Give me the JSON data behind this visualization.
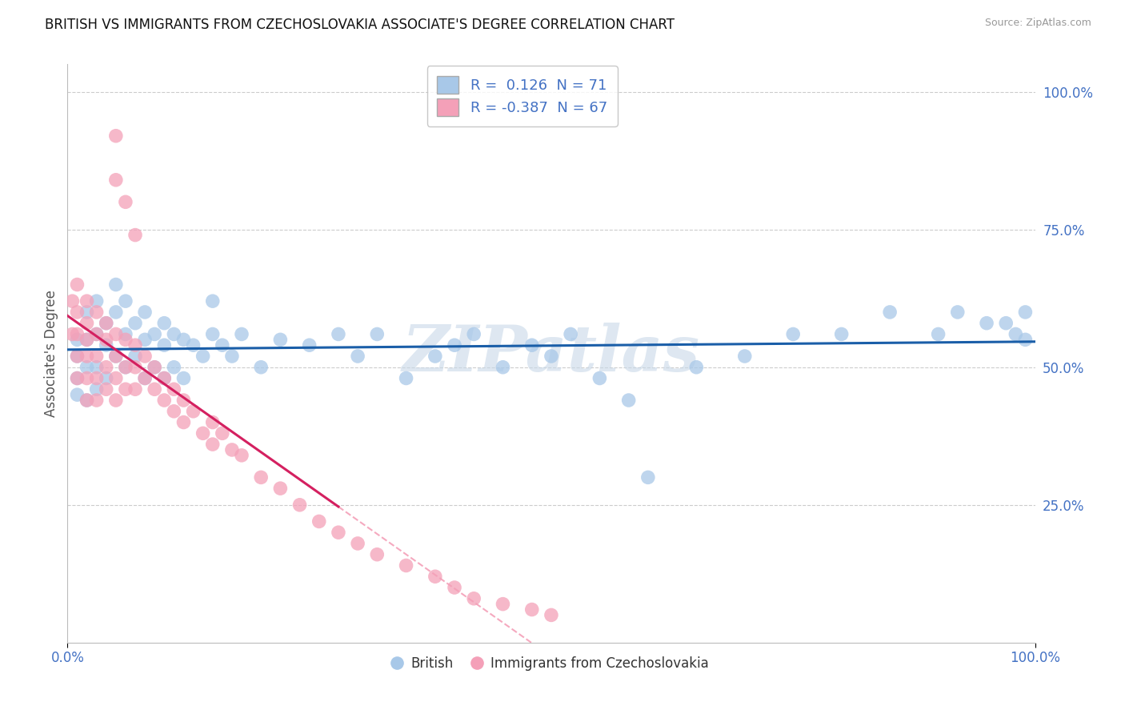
{
  "title": "BRITISH VS IMMIGRANTS FROM CZECHOSLOVAKIA ASSOCIATE'S DEGREE CORRELATION CHART",
  "source": "Source: ZipAtlas.com",
  "ylabel": "Associate's Degree",
  "ytick_labels": [
    "25.0%",
    "50.0%",
    "75.0%",
    "100.0%"
  ],
  "ytick_values": [
    0.25,
    0.5,
    0.75,
    1.0
  ],
  "blue_r": 0.126,
  "blue_n": 71,
  "pink_r": -0.387,
  "pink_n": 67,
  "blue_color": "#a8c8e8",
  "pink_color": "#f4a0b8",
  "blue_line_color": "#1a5ea8",
  "pink_line_color": "#d42060",
  "watermark_text": "ZIPatlas",
  "watermark_color": "#c8d8e8",
  "background_color": "#ffffff",
  "grid_color": "#cccccc",
  "title_color": "#111111",
  "axis_color": "#4472c4",
  "label_color": "#555555",
  "blue_x": [
    0.01,
    0.01,
    0.01,
    0.01,
    0.02,
    0.02,
    0.02,
    0.02,
    0.03,
    0.03,
    0.03,
    0.03,
    0.04,
    0.04,
    0.04,
    0.05,
    0.05,
    0.05,
    0.06,
    0.06,
    0.06,
    0.07,
    0.07,
    0.08,
    0.08,
    0.08,
    0.09,
    0.09,
    0.1,
    0.1,
    0.1,
    0.11,
    0.11,
    0.12,
    0.12,
    0.13,
    0.14,
    0.15,
    0.15,
    0.16,
    0.17,
    0.18,
    0.2,
    0.22,
    0.25,
    0.28,
    0.3,
    0.32,
    0.35,
    0.38,
    0.4,
    0.42,
    0.45,
    0.48,
    0.5,
    0.52,
    0.55,
    0.58,
    0.6,
    0.65,
    0.7,
    0.75,
    0.8,
    0.85,
    0.9,
    0.92,
    0.95,
    0.97,
    0.98,
    0.99,
    0.99
  ],
  "blue_y": [
    0.55,
    0.52,
    0.48,
    0.45,
    0.6,
    0.55,
    0.5,
    0.44,
    0.62,
    0.56,
    0.5,
    0.46,
    0.58,
    0.54,
    0.48,
    0.65,
    0.6,
    0.52,
    0.62,
    0.56,
    0.5,
    0.58,
    0.52,
    0.6,
    0.55,
    0.48,
    0.56,
    0.5,
    0.58,
    0.54,
    0.48,
    0.56,
    0.5,
    0.55,
    0.48,
    0.54,
    0.52,
    0.62,
    0.56,
    0.54,
    0.52,
    0.56,
    0.5,
    0.55,
    0.54,
    0.56,
    0.52,
    0.56,
    0.48,
    0.52,
    0.54,
    0.56,
    0.5,
    0.54,
    0.52,
    0.56,
    0.48,
    0.44,
    0.3,
    0.5,
    0.52,
    0.56,
    0.56,
    0.6,
    0.56,
    0.6,
    0.58,
    0.58,
    0.56,
    0.6,
    0.55
  ],
  "pink_x": [
    0.005,
    0.005,
    0.01,
    0.01,
    0.01,
    0.01,
    0.01,
    0.02,
    0.02,
    0.02,
    0.02,
    0.02,
    0.02,
    0.03,
    0.03,
    0.03,
    0.03,
    0.03,
    0.04,
    0.04,
    0.04,
    0.04,
    0.05,
    0.05,
    0.05,
    0.05,
    0.06,
    0.06,
    0.06,
    0.07,
    0.07,
    0.07,
    0.08,
    0.08,
    0.09,
    0.09,
    0.1,
    0.1,
    0.11,
    0.11,
    0.12,
    0.12,
    0.13,
    0.14,
    0.15,
    0.15,
    0.16,
    0.17,
    0.18,
    0.2,
    0.22,
    0.24,
    0.26,
    0.28,
    0.3,
    0.32,
    0.35,
    0.38,
    0.4,
    0.42,
    0.45,
    0.48,
    0.5,
    0.05,
    0.05,
    0.06,
    0.07
  ],
  "pink_y": [
    0.62,
    0.56,
    0.65,
    0.6,
    0.56,
    0.52,
    0.48,
    0.62,
    0.58,
    0.55,
    0.52,
    0.48,
    0.44,
    0.6,
    0.56,
    0.52,
    0.48,
    0.44,
    0.58,
    0.55,
    0.5,
    0.46,
    0.56,
    0.52,
    0.48,
    0.44,
    0.55,
    0.5,
    0.46,
    0.54,
    0.5,
    0.46,
    0.52,
    0.48,
    0.5,
    0.46,
    0.48,
    0.44,
    0.46,
    0.42,
    0.44,
    0.4,
    0.42,
    0.38,
    0.4,
    0.36,
    0.38,
    0.35,
    0.34,
    0.3,
    0.28,
    0.25,
    0.22,
    0.2,
    0.18,
    0.16,
    0.14,
    0.12,
    0.1,
    0.08,
    0.07,
    0.06,
    0.05,
    0.92,
    0.84,
    0.8,
    0.74
  ],
  "xlim": [
    0.0,
    1.0
  ],
  "ylim": [
    0.0,
    1.05
  ],
  "pink_line_xstart": 0.0,
  "pink_line_xend_solid": 0.28,
  "pink_line_xend_dashed": 0.55
}
